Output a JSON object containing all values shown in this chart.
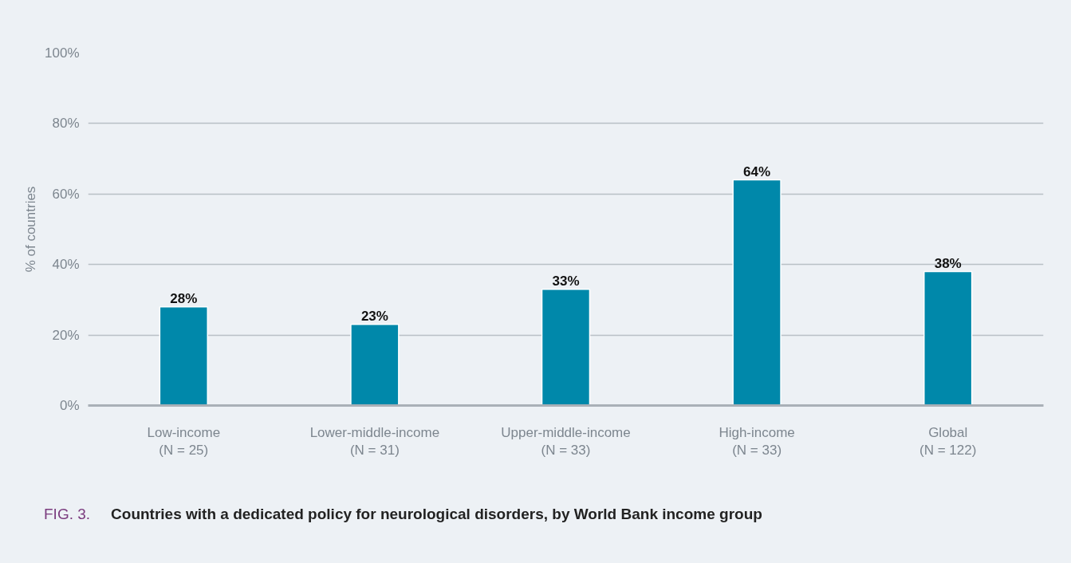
{
  "chart_data": {
    "type": "bar",
    "title": "Countries with a dedicated policy for neurological disorders, by World Bank income group",
    "annotations": [
      "FIG. 3."
    ],
    "ylabel": "% of countries",
    "categories": [
      "Low-income\n(N = 25)",
      "Lower-middle-income\n(N = 31)",
      "Upper-middle-income\n(N = 33)",
      "High-income\n(N = 33)",
      "Global\n(N = 122)"
    ],
    "values": [
      28,
      23,
      33,
      64,
      38
    ],
    "value_labels": [
      "28%",
      "23%",
      "33%",
      "64%",
      "38%"
    ],
    "color": "#0088aa",
    "ylim": [
      0,
      100
    ],
    "yticks": [
      {
        "value": 0,
        "label": "0%"
      },
      {
        "value": 20,
        "label": "20%"
      },
      {
        "value": 40,
        "label": "40%"
      },
      {
        "value": 60,
        "label": "60%"
      },
      {
        "value": 80,
        "label": "80%"
      },
      {
        "value": 100,
        "label": "100%"
      }
    ],
    "grid": "y"
  }
}
